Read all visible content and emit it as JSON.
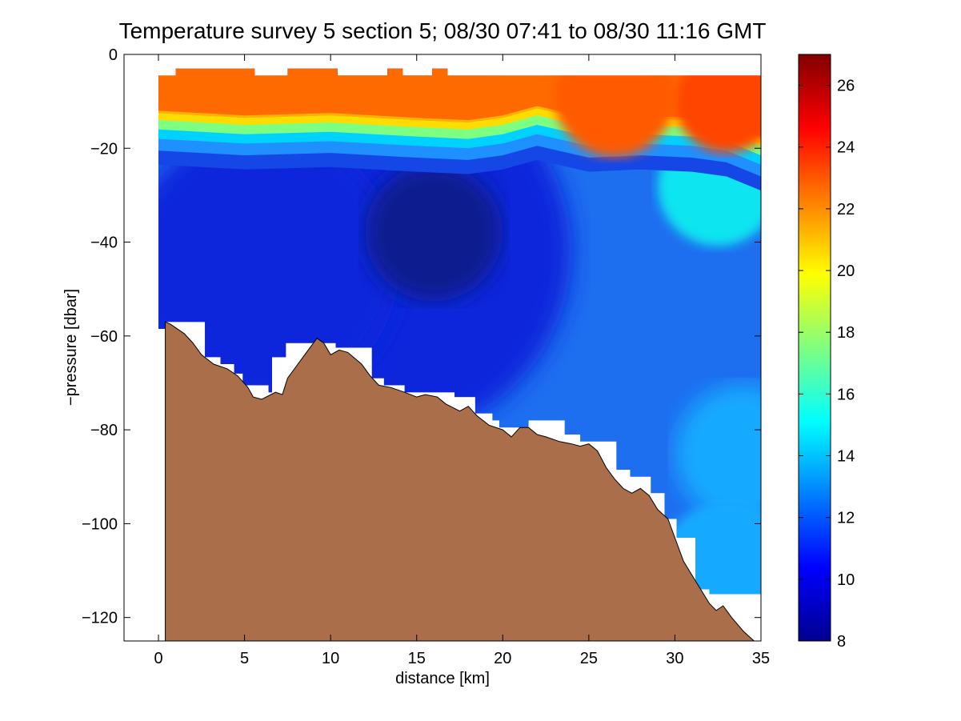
{
  "chart_data": {
    "type": "heatmap",
    "title": "Temperature survey 5 section 5; 08/30 07:41 to 08/30 11:16 GMT",
    "xlabel": "distance [km]",
    "ylabel": "−pressure [dbar]",
    "xlim": [
      -2,
      35
    ],
    "ylim": [
      -125,
      0
    ],
    "xticks": [
      0,
      5,
      10,
      15,
      20,
      25,
      30,
      35
    ],
    "yticks": [
      0,
      -20,
      -40,
      -60,
      -80,
      -100,
      -120
    ],
    "ytick_labels": [
      "0",
      "−20",
      "−40",
      "−60",
      "−80",
      "−100",
      "−120"
    ],
    "colorbar": {
      "range": [
        8,
        27
      ],
      "ticks": [
        8,
        10,
        12,
        14,
        16,
        18,
        20,
        22,
        24,
        26
      ],
      "colormap": "jet",
      "levels": 64
    },
    "grid": false,
    "colors": {
      "seabed": "#ab6e4a",
      "seabed_edge": "#000000",
      "surface_layer": "#ff6a00",
      "deep_water": "#0a26dc",
      "bottom_water": "#1e6ef0",
      "shelf_water": "#14aaff"
    },
    "data_top": [
      [
        0,
        -4.5
      ],
      [
        1,
        -4.5
      ],
      [
        1,
        -3
      ],
      [
        5.6,
        -3
      ],
      [
        5.6,
        -4.5
      ],
      [
        7.5,
        -4.5
      ],
      [
        7.5,
        -3
      ],
      [
        10.4,
        -3
      ],
      [
        10.4,
        -4.5
      ],
      [
        13.3,
        -4.5
      ],
      [
        13.3,
        -3
      ],
      [
        14.2,
        -3
      ],
      [
        14.2,
        -4.5
      ],
      [
        15.9,
        -4.5
      ],
      [
        15.9,
        -3
      ],
      [
        16.8,
        -3
      ],
      [
        16.8,
        -4.5
      ],
      [
        35,
        -4.5
      ]
    ],
    "thermocline": [
      [
        0,
        -14.5
      ],
      [
        5,
        -15.5
      ],
      [
        10,
        -15
      ],
      [
        15,
        -16
      ],
      [
        18,
        -16.5
      ],
      [
        20,
        -15.5
      ],
      [
        22,
        -13.5
      ],
      [
        25,
        -16
      ],
      [
        28,
        -15.5
      ],
      [
        31,
        -16
      ],
      [
        33,
        -17
      ],
      [
        35,
        -20
      ]
    ],
    "bathymetry": [
      [
        0.4,
        -57
      ],
      [
        0.7,
        -57.5
      ],
      [
        1.5,
        -59.5
      ],
      [
        2,
        -61.5
      ],
      [
        2.5,
        -64
      ],
      [
        3.2,
        -66
      ],
      [
        4,
        -67
      ],
      [
        4.6,
        -68.5
      ],
      [
        5.2,
        -71
      ],
      [
        5.5,
        -73
      ],
      [
        6,
        -73.5
      ],
      [
        6.8,
        -72
      ],
      [
        7.2,
        -72.5
      ],
      [
        7.5,
        -69
      ],
      [
        8,
        -66.5
      ],
      [
        8.6,
        -63.5
      ],
      [
        9.2,
        -60.5
      ],
      [
        9.6,
        -61.5
      ],
      [
        10,
        -64
      ],
      [
        10.5,
        -63
      ],
      [
        11,
        -63.5
      ],
      [
        11.8,
        -66
      ],
      [
        12.3,
        -68.5
      ],
      [
        12.8,
        -70.5
      ],
      [
        13.5,
        -71
      ],
      [
        14.3,
        -72
      ],
      [
        15,
        -73
      ],
      [
        15.5,
        -72.5
      ],
      [
        16.2,
        -73
      ],
      [
        16.7,
        -74.5
      ],
      [
        17.5,
        -76
      ],
      [
        18,
        -75
      ],
      [
        18.5,
        -77
      ],
      [
        19.2,
        -79
      ],
      [
        20,
        -80
      ],
      [
        20.5,
        -81.5
      ],
      [
        21,
        -79.5
      ],
      [
        21.5,
        -79.5
      ],
      [
        22,
        -81
      ],
      [
        22.5,
        -81.5
      ],
      [
        23.3,
        -82.5
      ],
      [
        24,
        -83
      ],
      [
        24.5,
        -83.5
      ],
      [
        25,
        -83
      ],
      [
        25.5,
        -84.5
      ],
      [
        26,
        -88
      ],
      [
        26.5,
        -90.5
      ],
      [
        27,
        -92.5
      ],
      [
        27.5,
        -93.5
      ],
      [
        28,
        -92.5
      ],
      [
        28.5,
        -94
      ],
      [
        29,
        -97
      ],
      [
        29.6,
        -99
      ],
      [
        30,
        -103
      ],
      [
        30.5,
        -108
      ],
      [
        31,
        -111
      ],
      [
        31.5,
        -114
      ],
      [
        32,
        -117
      ],
      [
        32.4,
        -118.5
      ],
      [
        32.8,
        -117.5
      ],
      [
        33.3,
        -120
      ],
      [
        34,
        -123
      ],
      [
        34.6,
        -125
      ]
    ],
    "data_bottom": [
      [
        0,
        -58.5
      ],
      [
        0.4,
        -58.5
      ],
      [
        0.4,
        -57
      ],
      [
        2.7,
        -57
      ],
      [
        2.7,
        -64.5
      ],
      [
        3.6,
        -64.5
      ],
      [
        3.6,
        -66
      ],
      [
        4.4,
        -66
      ],
      [
        4.4,
        -68
      ],
      [
        4.9,
        -68
      ],
      [
        4.9,
        -70.5
      ],
      [
        6.4,
        -70.5
      ],
      [
        6.4,
        -72
      ],
      [
        6.6,
        -72
      ],
      [
        6.6,
        -64.5
      ],
      [
        7.4,
        -64.5
      ],
      [
        7.4,
        -61.5
      ],
      [
        10.3,
        -61.5
      ],
      [
        10.3,
        -62.5
      ],
      [
        12.4,
        -62.5
      ],
      [
        12.4,
        -69
      ],
      [
        13.1,
        -69
      ],
      [
        13.1,
        -70.5
      ],
      [
        14.3,
        -70.5
      ],
      [
        14.3,
        -72
      ],
      [
        17.2,
        -72
      ],
      [
        17.2,
        -73
      ],
      [
        18.4,
        -73
      ],
      [
        18.4,
        -76.5
      ],
      [
        19.4,
        -76.5
      ],
      [
        19.4,
        -78
      ],
      [
        19.8,
        -78
      ],
      [
        19.8,
        -79.5
      ],
      [
        21.5,
        -79.5
      ],
      [
        21.5,
        -78
      ],
      [
        23.6,
        -78
      ],
      [
        23.6,
        -81
      ],
      [
        24.5,
        -81
      ],
      [
        24.5,
        -82.5
      ],
      [
        26.6,
        -82.5
      ],
      [
        26.6,
        -88.5
      ],
      [
        27.4,
        -88.5
      ],
      [
        27.4,
        -90
      ],
      [
        28.6,
        -90
      ],
      [
        28.6,
        -93.5
      ],
      [
        29.4,
        -93.5
      ],
      [
        29.4,
        -99
      ],
      [
        30.1,
        -99
      ],
      [
        30.1,
        -103
      ],
      [
        31.2,
        -103
      ],
      [
        31.2,
        -114
      ],
      [
        32,
        -114
      ],
      [
        32,
        -115
      ],
      [
        35,
        -115
      ]
    ]
  }
}
